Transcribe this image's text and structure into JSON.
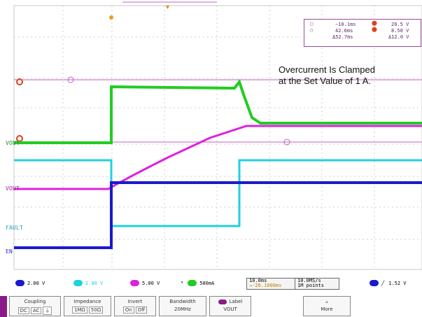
{
  "annotation": {
    "line1": "Overcurrent Is Clamped",
    "line2": "at the Set Value of 1 A."
  },
  "cursors": {
    "t1": "−10.1ms",
    "t2": "42.6ms",
    "dt": "Δ52.7ms",
    "v1": "20.5 V",
    "v2": "8.50 V",
    "dv": "Δ12.0 V"
  },
  "channel_labels": {
    "vout_green": "VOUT",
    "vout_magenta": "VOUT",
    "fault": "FAULT",
    "en": "EN"
  },
  "status": {
    "ch1_scale": "2.00 V",
    "ch2_scale": "2.00 V",
    "ch3_scale": "5.00 V",
    "ch4_scale": "500mA",
    "timebase": "10.0ms",
    "trigger_pos": "→-26.1000ms",
    "sample_rate": "10.0MS/s",
    "record_length": "1M points",
    "trigger_level": "1.52 V"
  },
  "menu": {
    "coupling_title": "Coupling",
    "coupling_opts": [
      "DC",
      "AC",
      "⏚"
    ],
    "impedance_title": "Impedance",
    "impedance_opts": [
      "1MΩ",
      "50Ω"
    ],
    "invert_title": "Invert",
    "invert_opts": [
      "On",
      "Off"
    ],
    "bandwidth_title": "Bandwidth",
    "bandwidth_value": "20MHz",
    "label_title": "Label",
    "label_value": "VOUT",
    "more": "More"
  },
  "colors": {
    "ch_green": "#22cc22",
    "ch_cyan": "#22d0e0",
    "ch_magenta": "#dd22dd",
    "ch_blue": "#1a1acc",
    "grid": "#bfbfbf",
    "cursor": "#c060c0"
  }
}
